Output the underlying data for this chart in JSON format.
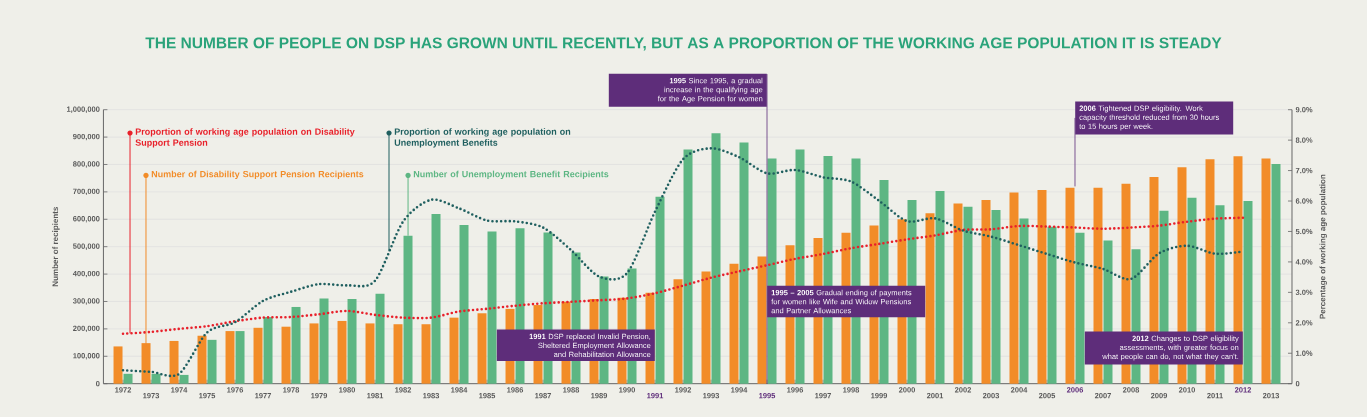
{
  "chart_data": {
    "type": "bar",
    "title": "THE NUMBER OF PEOPLE ON DSP HAS GROWN UNTIL RECENTLY, BUT AS A PROPORTION OF THE WORKING AGE POPULATION IT IS STEADY",
    "ylabel": "Number of recipients",
    "y2label": "Percentage of working age population",
    "categories": [
      "1972",
      "1973",
      "1974",
      "1975",
      "1976",
      "1977",
      "1978",
      "1979",
      "1980",
      "1981",
      "1982",
      "1983",
      "1984",
      "1985",
      "1986",
      "1987",
      "1988",
      "1989",
      "1990",
      "1991",
      "1992",
      "1993",
      "1994",
      "1995",
      "1996",
      "1997",
      "1998",
      "1999",
      "2000",
      "2001",
      "2002",
      "2003",
      "2004",
      "2005",
      "2006",
      "2007",
      "2008",
      "2009",
      "2010",
      "2011",
      "2012",
      "2013"
    ],
    "series": [
      {
        "name": "Number of Disability Support Pension Recipients",
        "color": "#f28c28",
        "values": [
          136000,
          148000,
          156000,
          175000,
          192000,
          204000,
          208000,
          220000,
          229000,
          220000,
          217000,
          217000,
          241000,
          257000,
          273000,
          287000,
          299000,
          309000,
          314000,
          332000,
          381000,
          409000,
          438000,
          464000,
          505000,
          532000,
          551000,
          577000,
          600000,
          622000,
          658000,
          670000,
          698000,
          707000,
          715000,
          715000,
          730000,
          754000,
          790000,
          819000,
          830000,
          822000
        ]
      },
      {
        "name": "Number of Unemployment Benefit Recipients",
        "color": "#5db683",
        "values": [
          36000,
          36000,
          32000,
          160000,
          192000,
          243000,
          280000,
          311000,
          309000,
          328000,
          540000,
          619000,
          579000,
          555000,
          567000,
          552000,
          479000,
          391000,
          420000,
          682000,
          855000,
          914000,
          880000,
          822000,
          855000,
          831000,
          822000,
          743000,
          670000,
          703000,
          646000,
          634000,
          603000,
          573000,
          551000,
          523000,
          491000,
          631000,
          679000,
          651000,
          667000,
          802000
        ]
      },
      {
        "name": "Proportion of working age population on Disability Support Pension",
        "type": "line",
        "axis": "y2",
        "color": "#e8202a",
        "line_style": "dotted",
        "values": [
          1.64,
          1.7,
          1.8,
          1.89,
          2.05,
          2.17,
          2.19,
          2.28,
          2.39,
          2.26,
          2.17,
          2.17,
          2.37,
          2.46,
          2.56,
          2.64,
          2.69,
          2.74,
          2.8,
          2.97,
          3.22,
          3.48,
          3.69,
          3.89,
          4.1,
          4.26,
          4.45,
          4.59,
          4.74,
          4.87,
          5.05,
          5.07,
          5.18,
          5.16,
          5.13,
          5.09,
          5.13,
          5.19,
          5.32,
          5.42,
          5.45,
          null
        ]
      },
      {
        "name": "Proportion of working age population on Unemployment Benefits",
        "type": "line",
        "axis": "y2",
        "color": "#1f5f5f",
        "line_style": "dotted",
        "values": [
          0.44,
          0.39,
          0.32,
          1.68,
          2.02,
          2.72,
          3.02,
          3.27,
          3.23,
          3.38,
          5.32,
          6.04,
          5.76,
          5.36,
          5.33,
          5.13,
          4.39,
          3.52,
          3.63,
          5.65,
          7.37,
          7.73,
          7.44,
          6.91,
          7.02,
          6.78,
          6.64,
          6.01,
          5.34,
          5.43,
          5.03,
          4.83,
          4.55,
          4.26,
          3.98,
          3.77,
          3.44,
          4.28,
          4.53,
          4.27,
          4.34,
          null
        ]
      }
    ],
    "ylim": [
      0,
      1000000
    ],
    "yticks": [
      0,
      {
        "value": 100000,
        "label": "100,000"
      },
      {
        "value": 200000,
        "label": "200,000"
      },
      {
        "value": 300000,
        "label": "300,000"
      },
      {
        "value": 400000,
        "label": "400,000"
      },
      {
        "value": 500000,
        "label": "500,000"
      },
      {
        "value": 600000,
        "label": "600,000"
      },
      {
        "value": 700000,
        "label": "700,000"
      },
      {
        "value": 800000,
        "label": "800,000"
      },
      {
        "value": 900000,
        "label": "900,000"
      },
      {
        "value": 1000000,
        "label": "1,000,000"
      }
    ],
    "y2lim": [
      0,
      9
    ],
    "y2ticks": [
      0,
      {
        "value": 1,
        "label": "1.0%"
      },
      {
        "value": 2,
        "label": "2.0%"
      },
      {
        "value": 3,
        "label": "3.0%"
      },
      {
        "value": 4,
        "label": "4.0%"
      },
      {
        "value": 5,
        "label": "5.0%"
      },
      {
        "value": 6,
        "label": "6.0%"
      },
      {
        "value": 7,
        "label": "7.0%"
      },
      {
        "value": 8,
        "label": "8.0%"
      },
      {
        "value": 9,
        "label": "9.0%"
      }
    ],
    "grid": "y",
    "legend": "top left",
    "ref_lines": [
      {
        "axis": "x",
        "value": "1995",
        "label": "**1995** Since 1995, a gradual increase in the qualifying age for the Age Pension for women",
        "color": "#5e2d7a"
      },
      {
        "axis": "x",
        "value": "2006",
        "label": "**2006** Tightened DSP eligibility. Work capacity threshold reduced from 30 hours to 15 hours per week.",
        "color": "#5e2d7a"
      }
    ],
    "annotations": [
      "**1991** DSP replaced Invalid Pension, Sheltered Employment Allowance and Rehabilitation Allowance",
      "**1995 – 2005** Gradual ending of payments for women like Wife and Widow Pensions and Partner Allowances",
      "**2012** Changes to DSP eligibility assessments, with greater focus on what people can do, not what they can't."
    ]
  }
}
